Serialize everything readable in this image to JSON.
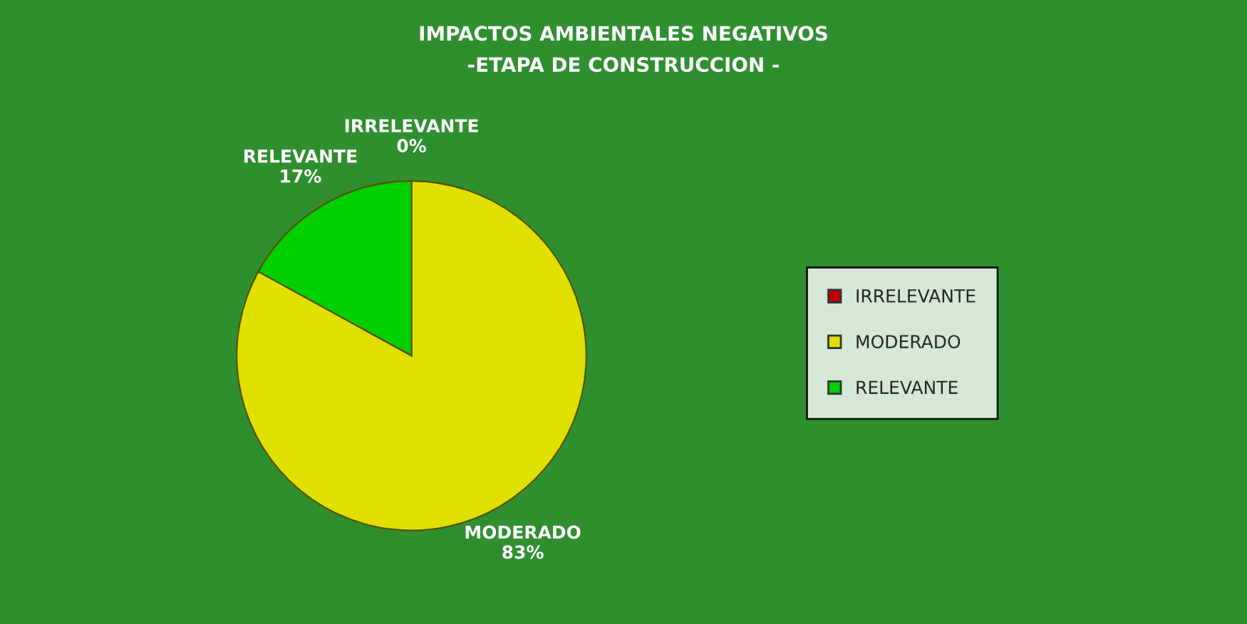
{
  "chart_data": {
    "type": "pie",
    "title": "IMPACTOS AMBIENTALES NEGATIVOS",
    "subtitle": "-ETAPA DE CONSTRUCCION -",
    "categories": [
      "IRRELEVANTE",
      "MODERADO",
      "RELEVANTE"
    ],
    "values": [
      0,
      83,
      17
    ],
    "value_labels": [
      "0%",
      "83%",
      "17%"
    ],
    "colors": [
      "#c00000",
      "#e0e000",
      "#00d000"
    ],
    "legend": "right"
  }
}
